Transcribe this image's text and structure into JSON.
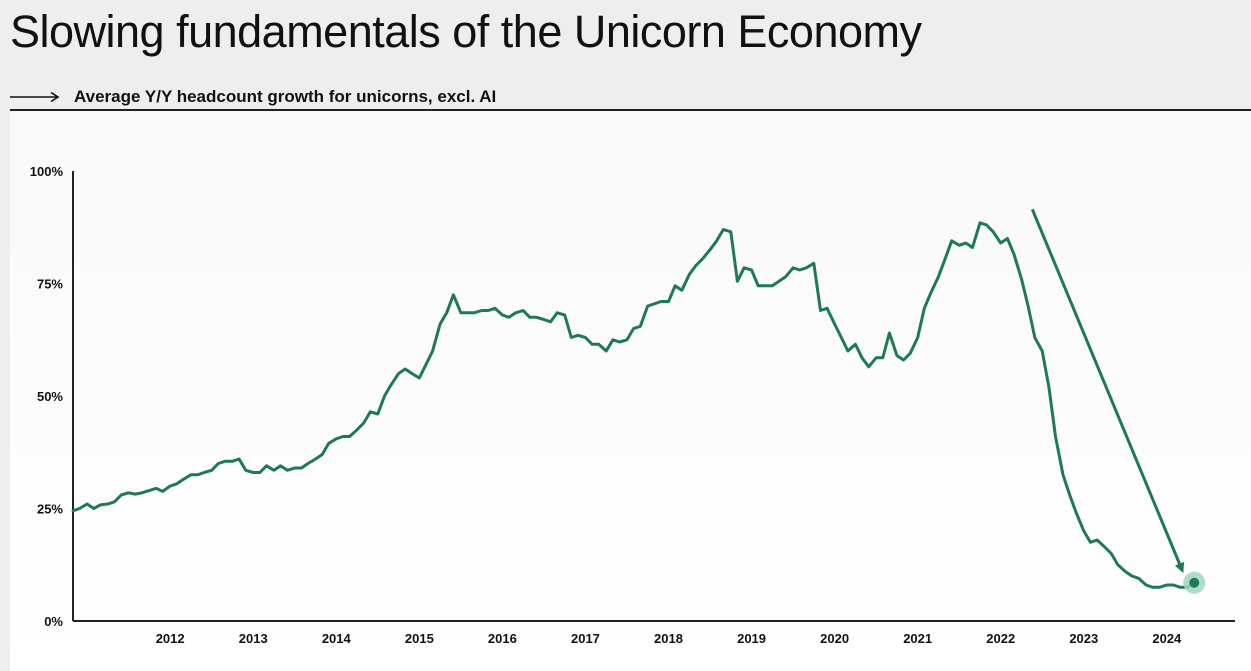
{
  "header": {
    "title": "Slowing fundamentals of the Unicorn Economy",
    "subtitle": "Average Y/Y headcount growth for unicorns, excl. AI",
    "arrow_icon": "right-arrow-icon"
  },
  "colors": {
    "line": "#1e7a55",
    "marker_halo": "#9fd7bd",
    "text": "#111111",
    "axis": "#222222"
  },
  "chart_data": {
    "type": "line",
    "title": "",
    "xlabel": "",
    "ylabel": "",
    "ylim": [
      0,
      100
    ],
    "xlim": [
      2011.25,
      2025.0
    ],
    "grid": false,
    "y_ticks": [
      0,
      25,
      50,
      75,
      100
    ],
    "y_tick_labels": [
      "0%",
      "25%",
      "50%",
      "75%",
      "100%"
    ],
    "x_ticks": [
      2012,
      2013,
      2014,
      2015,
      2016,
      2017,
      2018,
      2019,
      2020,
      2021,
      2022,
      2023,
      2024
    ],
    "x_tick_labels": [
      "2012",
      "2013",
      "2014",
      "2015",
      "2016",
      "2017",
      "2018",
      "2019",
      "2020",
      "2021",
      "2022",
      "2023",
      "2024"
    ],
    "series": [
      {
        "x": [
          2011.25,
          2011.33,
          2011.42,
          2011.5,
          2011.58,
          2011.67,
          2011.75,
          2011.83,
          2011.92,
          2012.0,
          2012.08,
          2012.17,
          2012.25,
          2012.33,
          2012.42,
          2012.5,
          2012.58,
          2012.67,
          2012.75,
          2012.83,
          2012.92,
          2013.0,
          2013.08,
          2013.17,
          2013.25,
          2013.33,
          2013.42,
          2013.5,
          2013.58,
          2013.67,
          2013.75,
          2013.83,
          2013.92,
          2014.0,
          2014.08,
          2014.17,
          2014.25,
          2014.33,
          2014.42,
          2014.5,
          2014.58,
          2014.67,
          2014.75,
          2014.83,
          2014.92,
          2015.0,
          2015.08,
          2015.17,
          2015.25,
          2015.33,
          2015.42,
          2015.5,
          2015.58,
          2015.67,
          2015.75,
          2015.83,
          2015.92,
          2016.0,
          2016.08,
          2016.17,
          2016.25,
          2016.33,
          2016.42,
          2016.5,
          2016.58,
          2016.67,
          2016.75,
          2016.83,
          2016.92,
          2017.0,
          2017.08,
          2017.17,
          2017.25,
          2017.33,
          2017.42,
          2017.5,
          2017.58,
          2017.67,
          2017.75,
          2017.83,
          2017.92,
          2018.0,
          2018.08,
          2018.17,
          2018.25,
          2018.33,
          2018.42,
          2018.5,
          2018.58,
          2018.67,
          2018.75,
          2018.83,
          2018.92,
          2019.0,
          2019.08,
          2019.17,
          2019.25,
          2019.33,
          2019.42,
          2019.5,
          2019.58,
          2019.67,
          2019.75,
          2019.83,
          2019.92,
          2020.0,
          2020.08,
          2020.17,
          2020.25,
          2020.33,
          2020.42,
          2020.5,
          2020.58,
          2020.67,
          2020.75,
          2020.83,
          2020.92,
          2021.0,
          2021.08,
          2021.17,
          2021.25,
          2021.33,
          2021.42,
          2021.5,
          2021.58,
          2021.67,
          2021.75,
          2021.83,
          2021.92,
          2022.0,
          2022.08,
          2022.17,
          2022.25,
          2022.33,
          2022.42,
          2022.5,
          2022.58,
          2022.67,
          2022.75,
          2022.83,
          2022.92,
          2023.0,
          2023.08,
          2023.17,
          2023.25,
          2023.33,
          2023.42,
          2023.5,
          2023.58,
          2023.67,
          2023.75,
          2023.83,
          2023.92,
          2024.0,
          2024.08,
          2024.17,
          2024.25,
          2024.33,
          2024.42,
          2024.5,
          2024.58,
          2024.67,
          2024.75
        ],
        "values": [
          24.5,
          25.0,
          26.0,
          25.0,
          25.8,
          26.0,
          26.5,
          28.0,
          28.5,
          28.2,
          28.5,
          29.0,
          29.5,
          28.8,
          30.0,
          30.5,
          31.5,
          32.5,
          32.5,
          33.0,
          33.5,
          35.0,
          35.5,
          35.5,
          36.0,
          33.5,
          33.0,
          33.0,
          34.5,
          33.5,
          34.5,
          33.5,
          34.0,
          34.0,
          35.0,
          36.0,
          37.0,
          39.5,
          40.5,
          41.0,
          41.0,
          42.5,
          44.0,
          46.5,
          46.0,
          50.0,
          52.5,
          55.0,
          56.0,
          55.0,
          54.0,
          57.0,
          60.0,
          66.0,
          68.5,
          72.5,
          68.5,
          68.5,
          68.5,
          69.0,
          69.0,
          69.5,
          68.0,
          67.5,
          68.5,
          69.0,
          67.5,
          67.5,
          67.0,
          66.5,
          68.5,
          68.0,
          63.0,
          63.5,
          63.0,
          61.5,
          61.5,
          60.0,
          62.5,
          62.0,
          62.5,
          65.0,
          65.5,
          70.0,
          70.5,
          71.0,
          71.0,
          74.5,
          73.5,
          77.0,
          79.0,
          80.5,
          82.5,
          84.5,
          87.0,
          86.5,
          75.5,
          78.5,
          78.0,
          74.5,
          74.5,
          74.5,
          75.5,
          76.5,
          78.5,
          78.0,
          78.5,
          79.5,
          69.0,
          69.5,
          66.0,
          63.0,
          60.0,
          61.5,
          58.5,
          56.5,
          58.5,
          58.5,
          64.0,
          59.0,
          58.0,
          59.5,
          63.0,
          69.5,
          73.0,
          76.5,
          80.5,
          84.5,
          83.5,
          84.0,
          83.0,
          88.5,
          88.0,
          86.5,
          84.0,
          85.0,
          81.5,
          76.0,
          70.0,
          63.0,
          60.0,
          52.0,
          41.0,
          32.5,
          28.0,
          24.0,
          20.0,
          17.5,
          18.0,
          16.5,
          15.0,
          12.5,
          11.0,
          10.0,
          9.5,
          8.0,
          7.5,
          7.5,
          8.0,
          8.0,
          7.5,
          7.5,
          8.5
        ]
      }
    ],
    "annotations": [
      {
        "type": "arrow",
        "from": [
          2022.8,
          91.5
        ],
        "to": [
          2024.6,
          11.5
        ]
      },
      {
        "type": "highlight-marker",
        "at": [
          2024.75,
          8.5
        ]
      }
    ]
  }
}
